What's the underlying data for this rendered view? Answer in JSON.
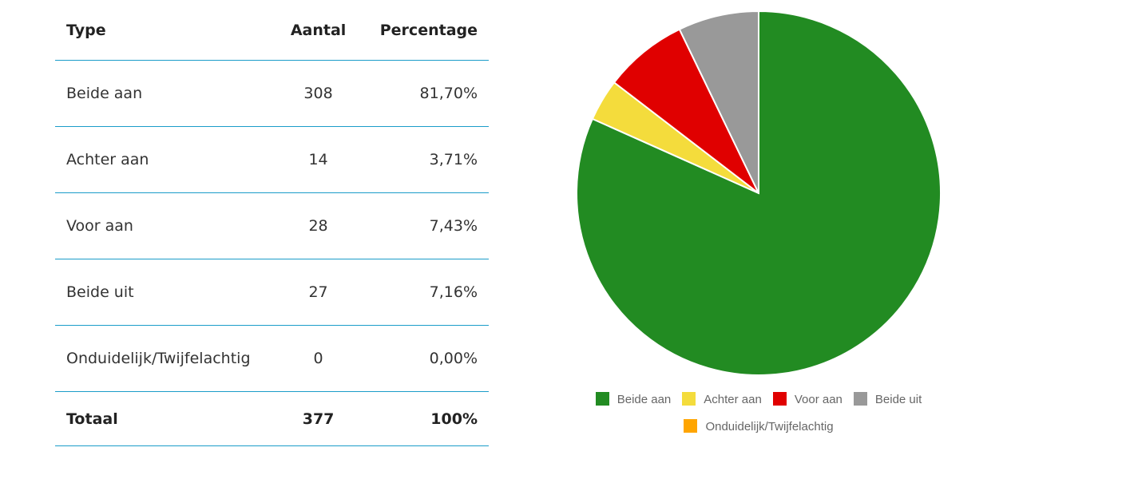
{
  "table": {
    "headers": [
      "Type",
      "Aantal",
      "Percentage"
    ],
    "rows": [
      {
        "type": "Beide aan",
        "count": "308",
        "pct": "81,70%"
      },
      {
        "type": "Achter aan",
        "count": "14",
        "pct": "3,71%"
      },
      {
        "type": "Voor aan",
        "count": "28",
        "pct": "7,43%"
      },
      {
        "type": "Beide uit",
        "count": "27",
        "pct": "7,16%"
      },
      {
        "type": "Onduidelijk/Twijfelachtig",
        "count": "0",
        "pct": "0,00%"
      }
    ],
    "total": {
      "type": "Totaal",
      "count": "377",
      "pct": "100%"
    }
  },
  "chart_data": {
    "type": "pie",
    "categories": [
      "Beide aan",
      "Achter aan",
      "Voor aan",
      "Beide uit",
      "Onduidelijk/Twijfelachtig"
    ],
    "values": [
      308,
      14,
      28,
      27,
      0
    ],
    "colors": [
      "#228b22",
      "#f4dc3c",
      "#e00000",
      "#999999",
      "#ffa500"
    ],
    "legend": "bottom"
  }
}
